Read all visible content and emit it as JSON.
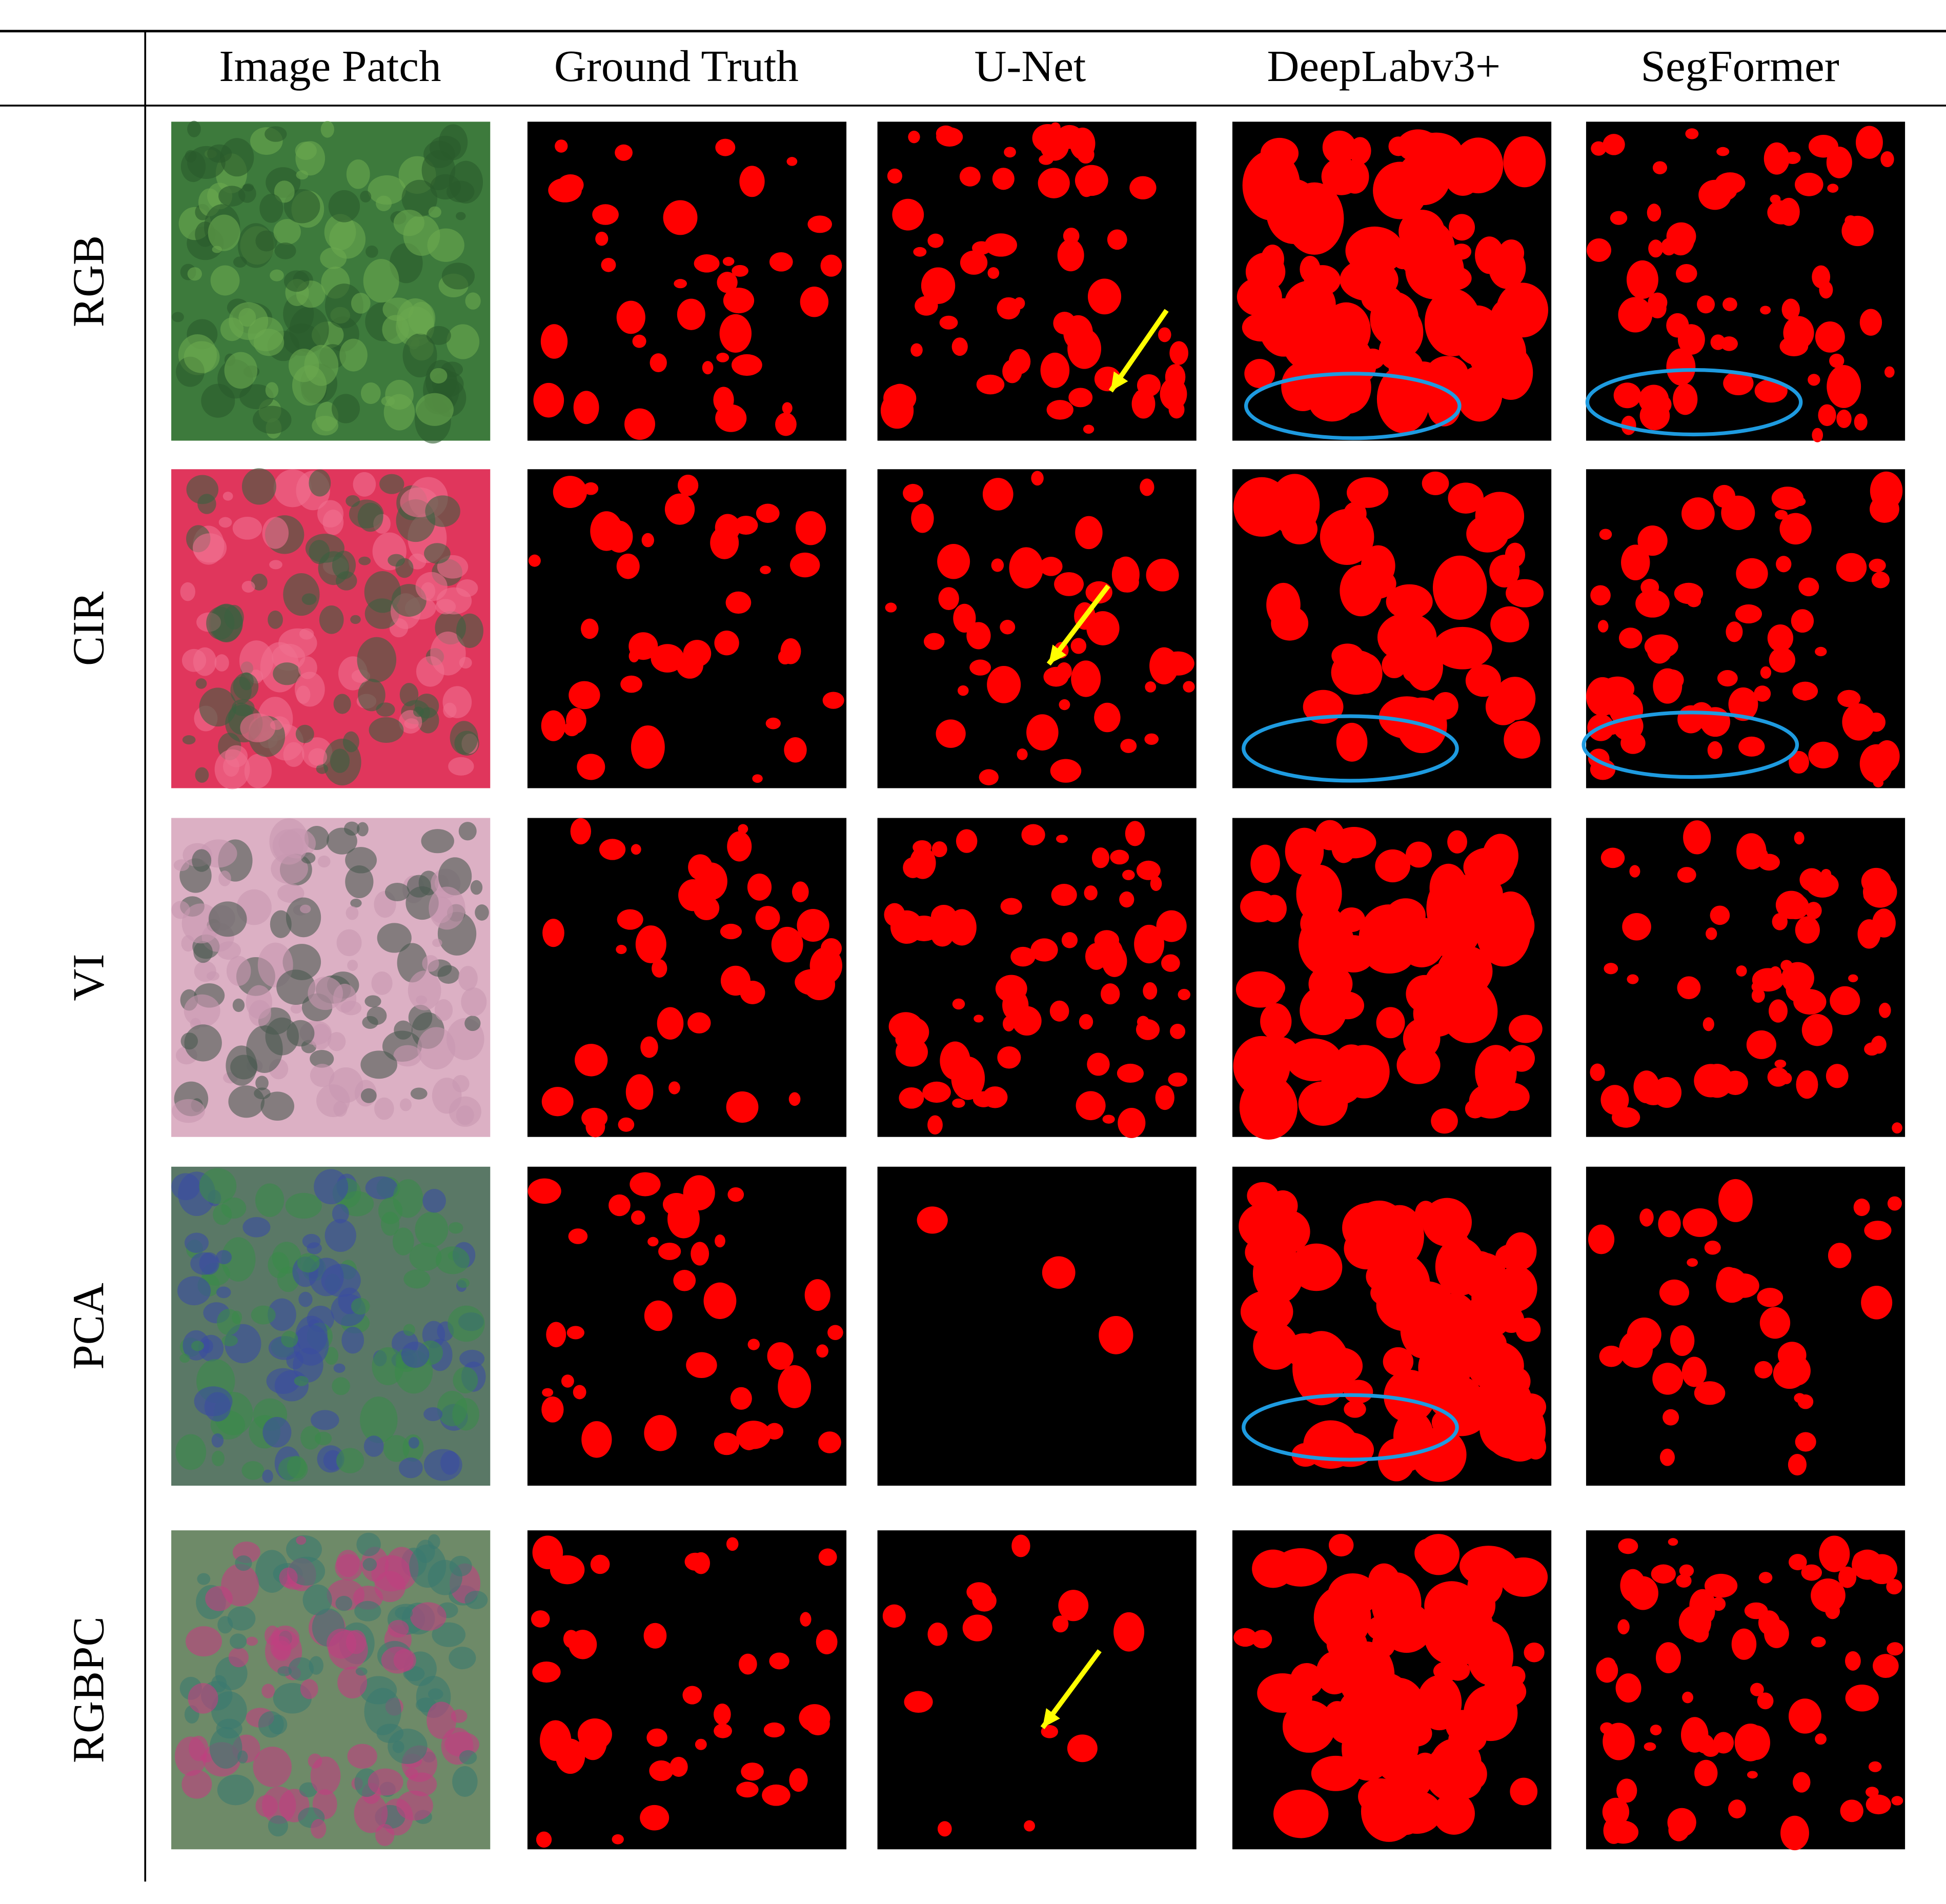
{
  "header": [
    "Image Patch",
    "Ground Truth",
    "U-Net",
    "DeepLabv3+",
    "SegFormer"
  ],
  "rows": [
    "RGB",
    "CIR",
    "VI",
    "PCA",
    "RGBPC"
  ]
}
